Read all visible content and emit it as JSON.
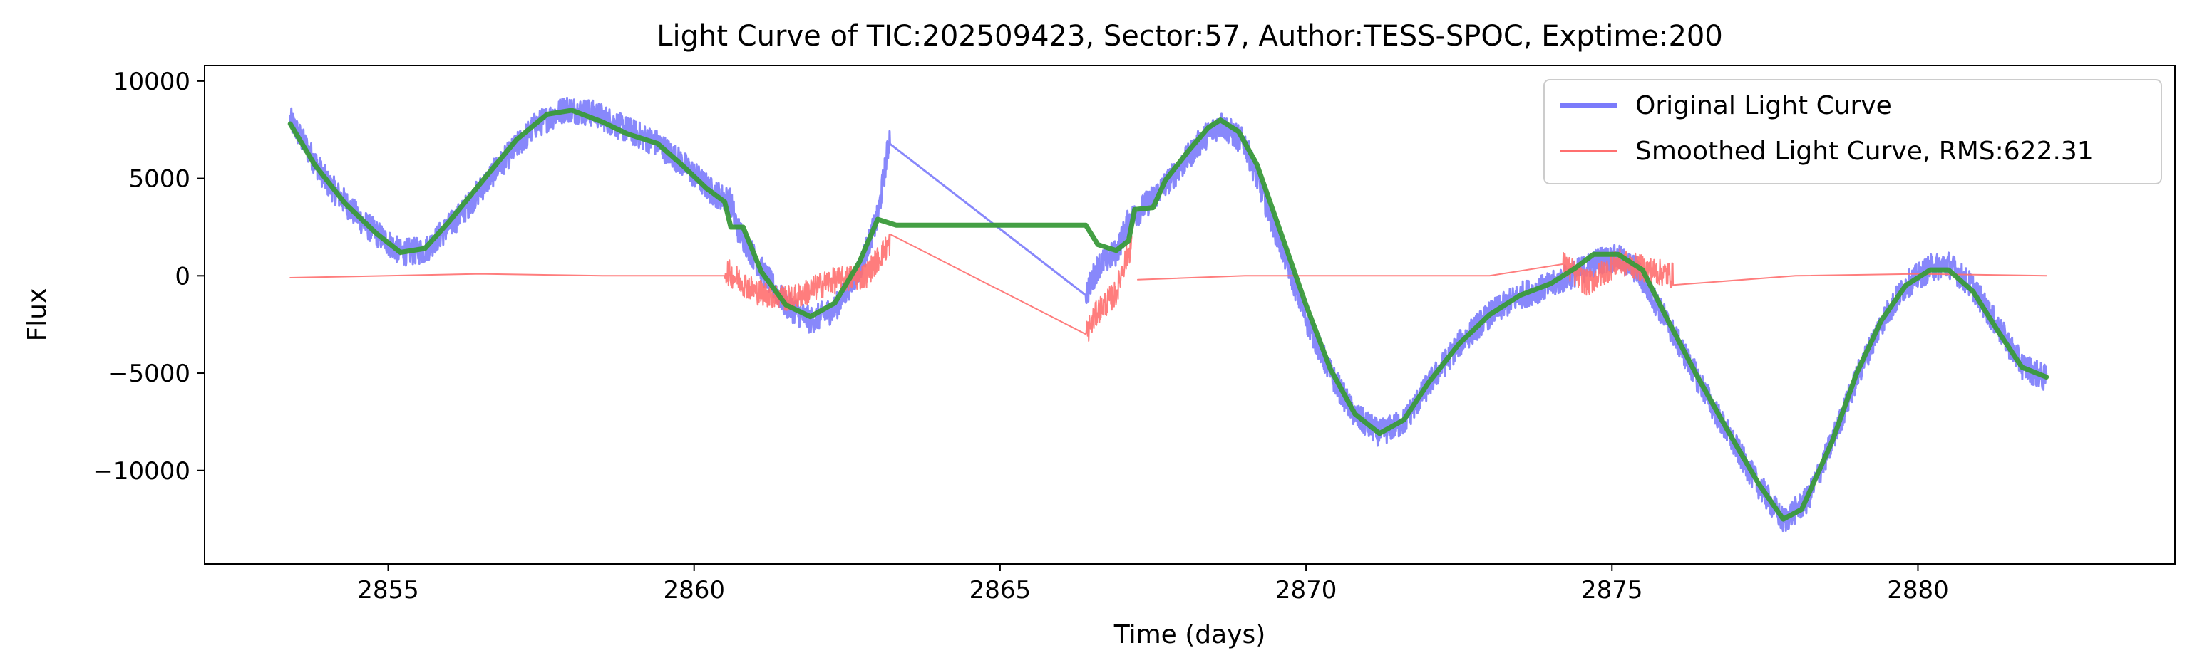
{
  "chart_data": {
    "type": "line",
    "title": "Light Curve of TIC:202509423, Sector:57, Author:TESS-SPOC, Exptime:200",
    "xlabel": "Time (days)",
    "ylabel": "Flux",
    "xlim": [
      2852.0,
      2884.2
    ],
    "ylim": [
      -14800,
      10800
    ],
    "xticks": [
      2855,
      2860,
      2865,
      2870,
      2875,
      2880
    ],
    "yticks": [
      10000,
      5000,
      0,
      -5000,
      -10000
    ],
    "xtick_labels": [
      "2855",
      "2860",
      "2865",
      "2870",
      "2875",
      "2880"
    ],
    "ytick_labels": [
      "10000",
      "5000",
      "0",
      "−5000",
      "−10000"
    ],
    "grid": false,
    "legend_position": "top-right",
    "series": [
      {
        "name": "Original Light Curve",
        "color": "#7b7bfb",
        "style": "noisy band",
        "amplitude": 700,
        "segments": [
          [
            [
              2853.4,
              8000
            ],
            [
              2854.0,
              4800
            ],
            [
              2854.6,
              2700
            ],
            [
              2855.2,
              1200
            ],
            [
              2855.6,
              1300
            ],
            [
              2856.2,
              3200
            ],
            [
              2856.8,
              5600
            ],
            [
              2857.4,
              7700
            ],
            [
              2857.9,
              8600
            ],
            [
              2858.4,
              8300
            ],
            [
              2858.9,
              7500
            ],
            [
              2859.4,
              6800
            ],
            [
              2859.8,
              5800
            ],
            [
              2860.3,
              4300
            ],
            [
              2860.6,
              3800
            ],
            [
              2860.7,
              2500
            ],
            [
              2861.1,
              300
            ],
            [
              2861.5,
              -1500
            ],
            [
              2861.9,
              -2300
            ],
            [
              2862.3,
              -1700
            ],
            [
              2862.7,
              300
            ],
            [
              2863.0,
              3000
            ],
            [
              2863.2,
              7200
            ],
            [
              2866.4,
              -1000
            ],
            [
              2866.6,
              500
            ],
            [
              2866.9,
              1200
            ],
            [
              2867.1,
              2800
            ],
            [
              2867.5,
              4000
            ],
            [
              2867.9,
              5400
            ],
            [
              2868.3,
              7000
            ],
            [
              2868.6,
              7800
            ],
            [
              2869.0,
              6800
            ],
            [
              2869.4,
              3200
            ],
            [
              2869.7,
              600
            ],
            [
              2870.0,
              -2200
            ],
            [
              2870.4,
              -5000
            ],
            [
              2870.8,
              -7200
            ],
            [
              2871.2,
              -8100
            ],
            [
              2871.6,
              -7500
            ],
            [
              2872.0,
              -5600
            ],
            [
              2872.5,
              -3500
            ],
            [
              2873.0,
              -2000
            ],
            [
              2873.5,
              -1000
            ],
            [
              2874.0,
              -500
            ],
            [
              2874.5,
              300
            ],
            [
              2874.8,
              800
            ],
            [
              2875.1,
              900
            ],
            [
              2875.4,
              300
            ],
            [
              2875.8,
              -1800
            ],
            [
              2876.3,
              -4700
            ],
            [
              2876.8,
              -7600
            ],
            [
              2877.3,
              -10300
            ],
            [
              2877.8,
              -12600
            ],
            [
              2878.2,
              -11500
            ],
            [
              2878.6,
              -8500
            ],
            [
              2879.0,
              -5200
            ],
            [
              2879.4,
              -2400
            ],
            [
              2879.8,
              -500
            ],
            [
              2880.2,
              400
            ],
            [
              2880.5,
              600
            ],
            [
              2880.9,
              -600
            ],
            [
              2881.3,
              -2600
            ],
            [
              2881.7,
              -4600
            ],
            [
              2882.1,
              -5300
            ]
          ]
        ]
      },
      {
        "name": "Smoothed Light Curve, RMS:622.31",
        "color": "#ff6f6f",
        "style": "noisy band",
        "amplitude": 680,
        "segments": [
          [
            [
              2853.4,
              -100
            ],
            [
              2855.0,
              0
            ],
            [
              2856.5,
              100
            ],
            [
              2858.5,
              0
            ],
            [
              2860.5,
              0
            ]
          ],
          [
            [
              2860.5,
              300
            ],
            [
              2861.0,
              -800
            ],
            [
              2861.6,
              -1200
            ],
            [
              2862.2,
              -300
            ],
            [
              2862.8,
              0
            ],
            [
              2863.2,
              1700
            ],
            [
              2866.4,
              -3000
            ],
            [
              2866.6,
              -1800
            ],
            [
              2866.9,
              -900
            ],
            [
              2867.0,
              400
            ],
            [
              2867.15,
              1600
            ]
          ],
          [
            [
              2867.25,
              -200
            ],
            [
              2869.0,
              0
            ],
            [
              2871.0,
              0
            ],
            [
              2873.0,
              0
            ],
            [
              2874.2,
              600
            ],
            [
              2874.6,
              -400
            ],
            [
              2875.1,
              700
            ],
            [
              2876.0,
              0
            ],
            [
              2878.0,
              0
            ],
            [
              2880.0,
              100
            ],
            [
              2882.1,
              0
            ]
          ]
        ]
      },
      {
        "name": "",
        "color": "#3a9a3a",
        "style": "line",
        "segments": [
          [
            [
              2853.4,
              7800
            ],
            [
              2853.8,
              5700
            ],
            [
              2854.3,
              3700
            ],
            [
              2854.8,
              2200
            ],
            [
              2855.2,
              1200
            ],
            [
              2855.6,
              1400
            ],
            [
              2856.0,
              2800
            ],
            [
              2856.6,
              5100
            ],
            [
              2857.1,
              7000
            ],
            [
              2857.6,
              8300
            ],
            [
              2858.0,
              8500
            ],
            [
              2858.5,
              7900
            ],
            [
              2858.9,
              7300
            ],
            [
              2859.4,
              6800
            ],
            [
              2859.8,
              5700
            ],
            [
              2860.2,
              4500
            ],
            [
              2860.5,
              3800
            ],
            [
              2860.6,
              2500
            ],
            [
              2860.8,
              2500
            ],
            [
              2861.1,
              200
            ],
            [
              2861.5,
              -1500
            ],
            [
              2861.9,
              -2100
            ],
            [
              2862.3,
              -1400
            ],
            [
              2862.7,
              700
            ],
            [
              2863.0,
              2900
            ],
            [
              2863.3,
              2600
            ],
            [
              2866.4,
              2600
            ],
            [
              2866.6,
              1600
            ],
            [
              2866.9,
              1300
            ],
            [
              2867.1,
              1800
            ],
            [
              2867.2,
              3400
            ],
            [
              2867.5,
              3500
            ],
            [
              2867.7,
              4900
            ],
            [
              2868.1,
              6500
            ],
            [
              2868.4,
              7600
            ],
            [
              2868.6,
              8000
            ],
            [
              2868.9,
              7400
            ],
            [
              2869.2,
              5700
            ],
            [
              2869.6,
              2100
            ],
            [
              2870.0,
              -1500
            ],
            [
              2870.4,
              -4800
            ],
            [
              2870.8,
              -7100
            ],
            [
              2871.2,
              -8100
            ],
            [
              2871.6,
              -7400
            ],
            [
              2872.0,
              -5500
            ],
            [
              2872.5,
              -3500
            ],
            [
              2873.0,
              -2000
            ],
            [
              2873.5,
              -1000
            ],
            [
              2874.0,
              -400
            ],
            [
              2874.4,
              400
            ],
            [
              2874.7,
              1100
            ],
            [
              2875.1,
              1100
            ],
            [
              2875.5,
              300
            ],
            [
              2875.9,
              -2200
            ],
            [
              2876.4,
              -5200
            ],
            [
              2876.9,
              -8000
            ],
            [
              2877.4,
              -10700
            ],
            [
              2877.8,
              -12500
            ],
            [
              2878.1,
              -12000
            ],
            [
              2878.6,
              -8500
            ],
            [
              2879.0,
              -5000
            ],
            [
              2879.4,
              -2300
            ],
            [
              2879.8,
              -500
            ],
            [
              2880.2,
              300
            ],
            [
              2880.5,
              300
            ],
            [
              2880.9,
              -800
            ],
            [
              2881.3,
              -2800
            ],
            [
              2881.7,
              -4700
            ],
            [
              2882.1,
              -5200
            ]
          ]
        ]
      }
    ]
  }
}
